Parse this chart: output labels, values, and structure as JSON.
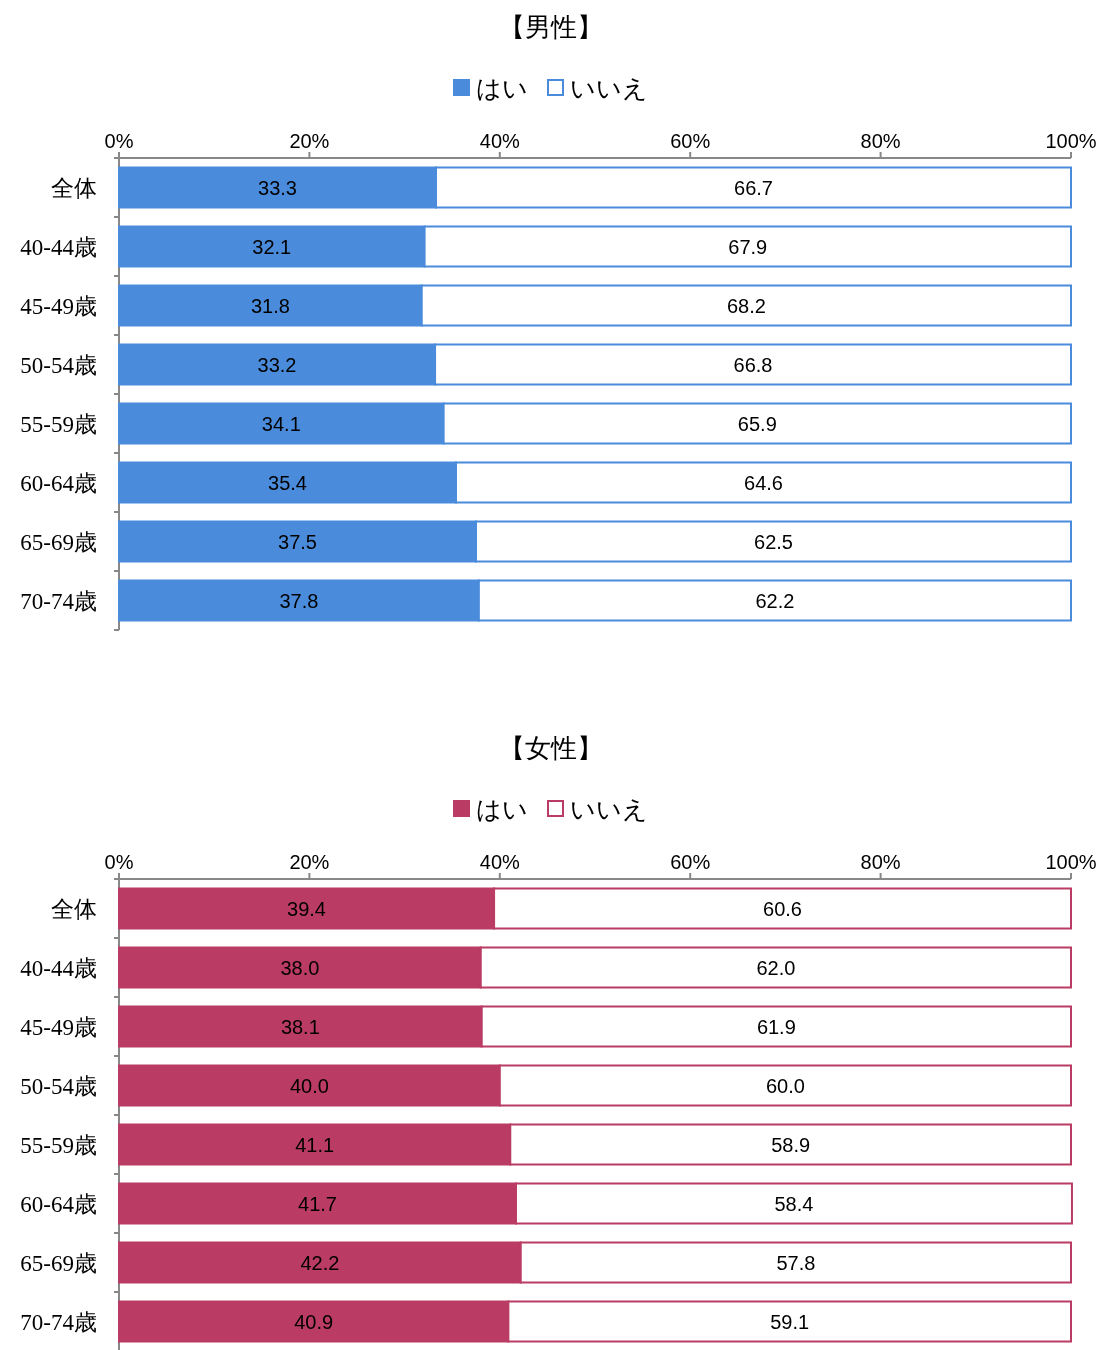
{
  "chart_data": [
    {
      "type": "bar",
      "orientation": "horizontal",
      "stacked": true,
      "title": "【男性】",
      "legend": "top",
      "categories": [
        "全体",
        "40-44歳",
        "45-49歳",
        "50-54歳",
        "55-59歳",
        "60-64歳",
        "65-69歳",
        "70-74歳"
      ],
      "series": [
        {
          "name": "はい",
          "color": "#4a8cdb",
          "values": [
            33.3,
            32.1,
            31.8,
            33.2,
            34.1,
            35.4,
            37.5,
            37.8
          ],
          "value_labels": [
            "33.3",
            "32.1",
            "31.8",
            "33.2",
            "34.1",
            "35.4",
            "37.5",
            "37.8"
          ]
        },
        {
          "name": "いいえ",
          "color": "#ffffff",
          "values": [
            66.7,
            67.9,
            68.2,
            66.8,
            65.9,
            64.6,
            62.5,
            62.2
          ],
          "value_labels": [
            "66.7",
            "67.9",
            "68.2",
            "66.8",
            "65.9",
            "64.6",
            "62.5",
            "62.2"
          ]
        }
      ],
      "xlim": [
        0,
        100
      ],
      "xticks": [
        {
          "value": 0,
          "label": "0%"
        },
        {
          "value": 20,
          "label": "20%"
        },
        {
          "value": 40,
          "label": "40%"
        },
        {
          "value": 60,
          "label": "60%"
        },
        {
          "value": 80,
          "label": "80%"
        },
        {
          "value": 100,
          "label": "100%"
        }
      ]
    },
    {
      "type": "bar",
      "orientation": "horizontal",
      "stacked": true,
      "title": "【女性】",
      "legend": "top",
      "categories": [
        "全体",
        "40-44歳",
        "45-49歳",
        "50-54歳",
        "55-59歳",
        "60-64歳",
        "65-69歳",
        "70-74歳"
      ],
      "series": [
        {
          "name": "はい",
          "color": "#ba3c64",
          "values": [
            39.4,
            38.0,
            38.1,
            40.0,
            41.1,
            41.7,
            42.2,
            40.9
          ],
          "value_labels": [
            "39.4",
            "38.0",
            "38.1",
            "40.0",
            "41.1",
            "41.7",
            "42.2",
            "40.9"
          ]
        },
        {
          "name": "いいえ",
          "color": "#ffffff",
          "values": [
            60.6,
            62.0,
            61.9,
            60.0,
            58.9,
            58.4,
            57.8,
            59.1
          ],
          "value_labels": [
            "60.6",
            "62.0",
            "61.9",
            "60.0",
            "58.9",
            "58.4",
            "57.8",
            "59.1"
          ]
        }
      ],
      "xlim": [
        0,
        100
      ],
      "xticks": [
        {
          "value": 0,
          "label": "0%"
        },
        {
          "value": 20,
          "label": "20%"
        },
        {
          "value": 40,
          "label": "40%"
        },
        {
          "value": 60,
          "label": "60%"
        },
        {
          "value": 80,
          "label": "80%"
        },
        {
          "value": 100,
          "label": "100%"
        }
      ]
    }
  ]
}
